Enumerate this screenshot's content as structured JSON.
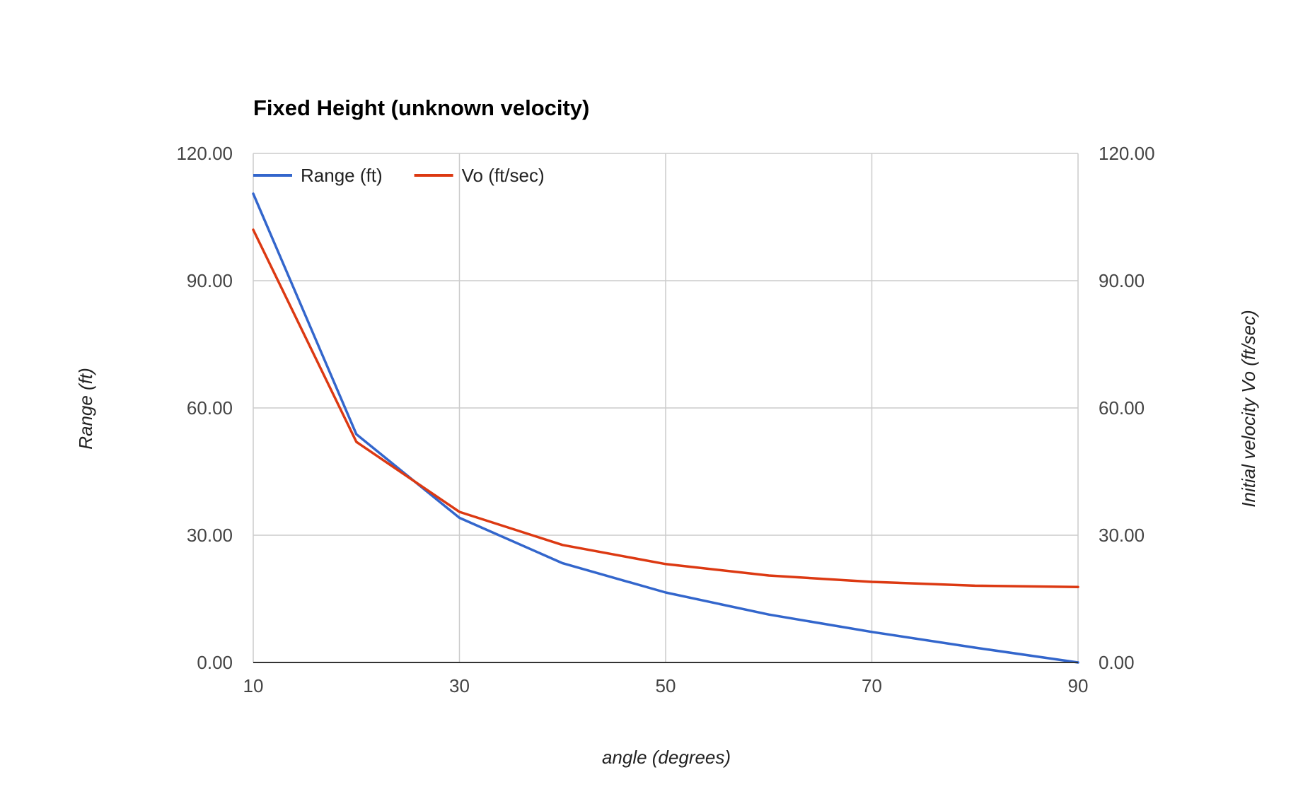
{
  "chart_data": {
    "type": "line",
    "title": "Fixed Height (unknown velocity)",
    "xlabel": "angle (degrees)",
    "ylabel_left": "Range (ft)",
    "ylabel_right": "Initial velocity Vo (ft/sec)",
    "x": [
      10,
      20,
      30,
      40,
      50,
      60,
      70,
      80,
      90
    ],
    "x_ticks": [
      "10",
      "30",
      "50",
      "70",
      "90"
    ],
    "x_tick_values": [
      10,
      30,
      50,
      70,
      90
    ],
    "y_ticks": [
      "0.00",
      "30.00",
      "60.00",
      "90.00",
      "120.00"
    ],
    "y_tick_values": [
      0,
      30,
      60,
      90,
      120
    ],
    "xlim": [
      10,
      90
    ],
    "ylim_left": [
      0,
      120
    ],
    "ylim_right": [
      0,
      120
    ],
    "grid": true,
    "legend_position": "top-left",
    "series": [
      {
        "name": "Range (ft)",
        "axis": "left",
        "color": "#3366cc",
        "values": [
          110.5,
          53.8,
          34.1,
          23.4,
          16.5,
          11.3,
          7.2,
          3.5,
          0.0
        ]
      },
      {
        "name": "Vo (ft/sec)",
        "axis": "right",
        "color": "#dc3912",
        "values": [
          102.0,
          52.0,
          35.5,
          27.7,
          23.2,
          20.5,
          19.0,
          18.1,
          17.8
        ]
      }
    ]
  }
}
